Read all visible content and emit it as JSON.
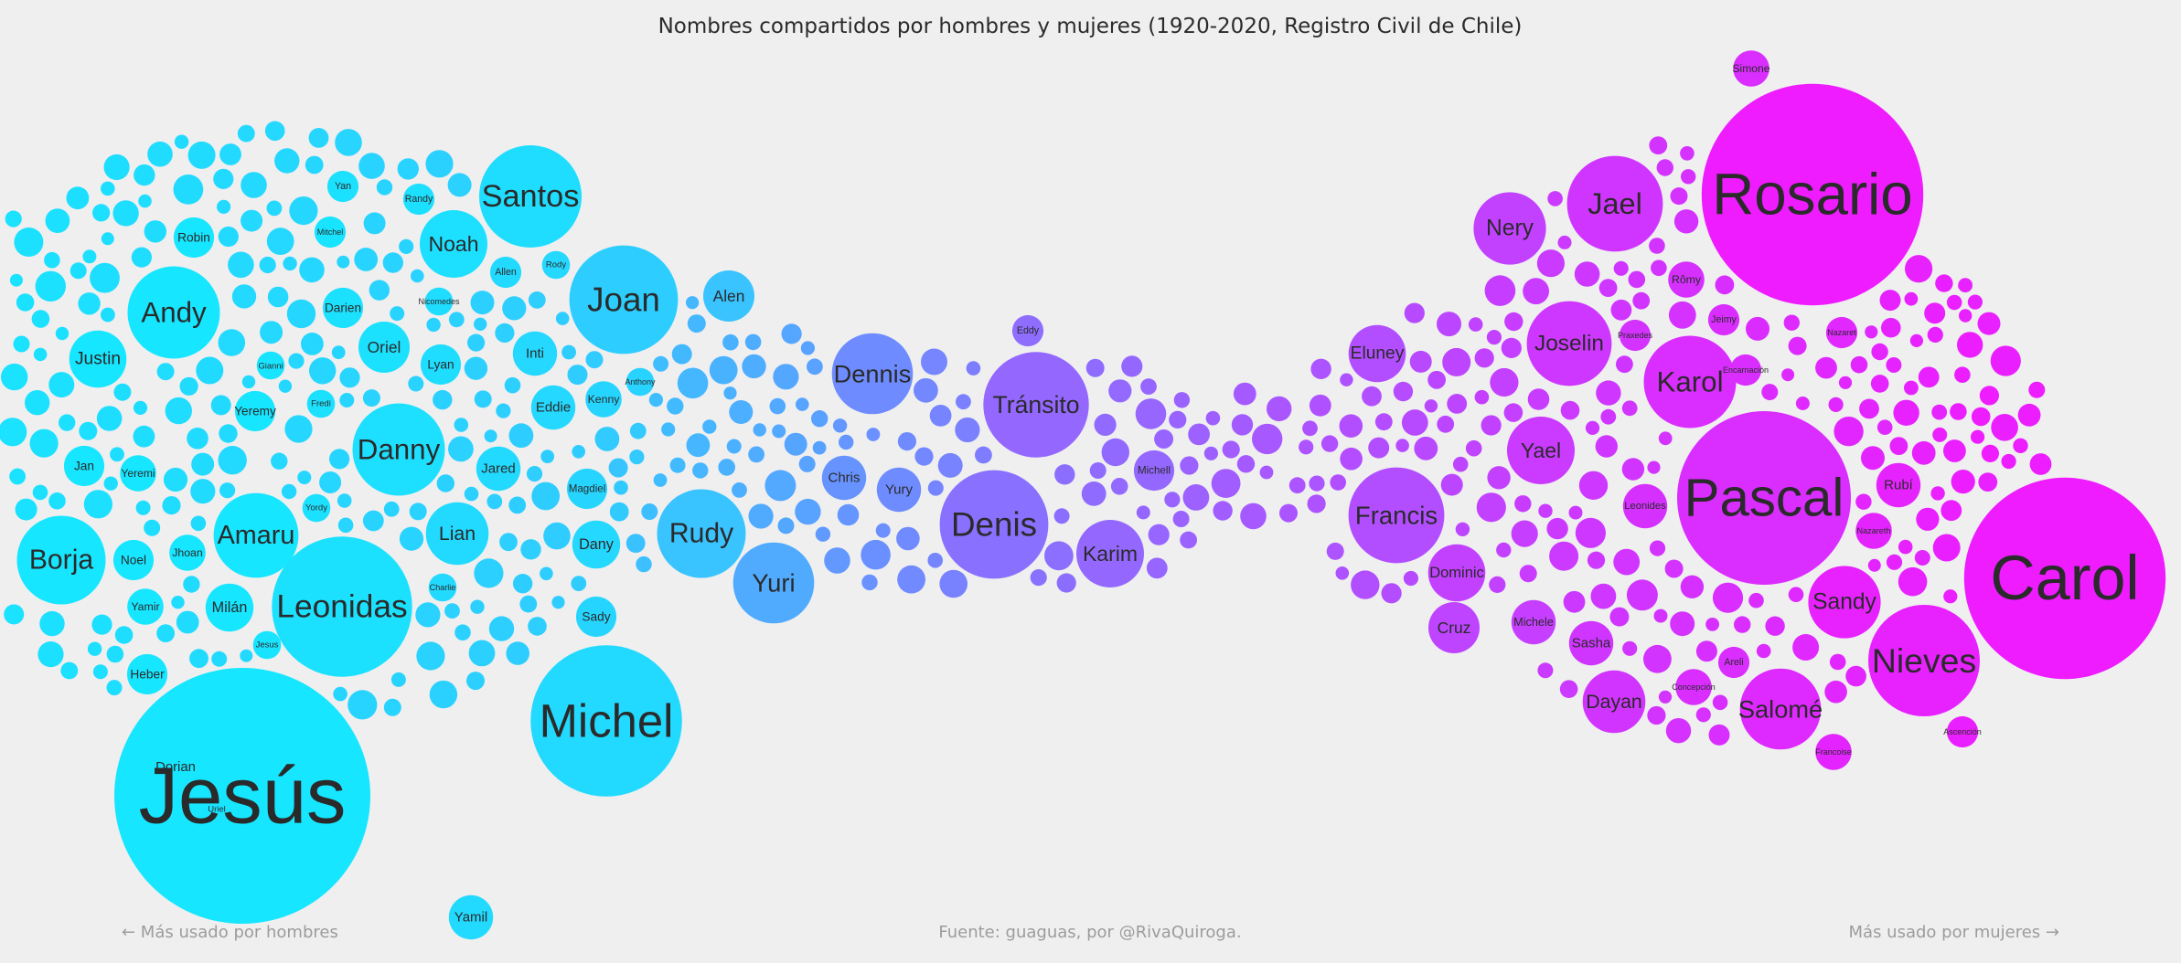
{
  "chart_data": {
    "type": "bubble",
    "title": "Nombres compartidos por hombres y mujeres (1920-2020, Registro Civil de Chile)",
    "left_note": "← Más usado por hombres",
    "center_note": "Fuente: guaguas, por @RivaQuiroga.",
    "right_note": "Más usado por mujeres →",
    "colors": {
      "male": "#16e6ff",
      "neutral": "#8a70ff",
      "female": "#ee1cff",
      "background": "#efefef"
    },
    "scale_note": "x = lean from 0 (mostly men) to 1 (mostly women); size = relative frequency (0-100)",
    "names": [
      {
        "name": "Jesús",
        "x": 0.0,
        "size": 100
      },
      {
        "name": "Rosario",
        "x": 1.0,
        "size": 75
      },
      {
        "name": "Carol",
        "x": 1.0,
        "size": 62
      },
      {
        "name": "Pascal",
        "x": 0.9,
        "size": 46
      },
      {
        "name": "Michel",
        "x": 0.05,
        "size": 35
      },
      {
        "name": "Leonidas",
        "x": 0.02,
        "size": 30
      },
      {
        "name": "Denis",
        "x": 0.5,
        "size": 18
      },
      {
        "name": "Tránsito",
        "x": 0.55,
        "size": 17
      },
      {
        "name": "Santos",
        "x": 0.04,
        "size": 16
      },
      {
        "name": "Joan",
        "x": 0.1,
        "size": 18
      },
      {
        "name": "Nieves",
        "x": 0.97,
        "size": 19
      },
      {
        "name": "Danny",
        "x": 0.03,
        "size": 13
      },
      {
        "name": "Andy",
        "x": 0.0,
        "size": 13
      },
      {
        "name": "Amaru",
        "x": 0.0,
        "size": 11
      },
      {
        "name": "Francis",
        "x": 0.7,
        "size": 14
      },
      {
        "name": "Jael",
        "x": 0.85,
        "size": 14
      },
      {
        "name": "Salomé",
        "x": 0.92,
        "size": 10
      },
      {
        "name": "Karol",
        "x": 0.9,
        "size": 13
      },
      {
        "name": "Joselin",
        "x": 0.84,
        "size": 11
      },
      {
        "name": "Rudy",
        "x": 0.15,
        "size": 12
      },
      {
        "name": "Borja",
        "x": 0.0,
        "size": 12
      },
      {
        "name": "Sandy",
        "x": 0.97,
        "size": 8
      },
      {
        "name": "Dennis",
        "x": 0.38,
        "size": 10
      },
      {
        "name": "Yuri",
        "x": 0.25,
        "size": 10
      },
      {
        "name": "Dayan",
        "x": 0.86,
        "size": 6
      },
      {
        "name": "Karim",
        "x": 0.55,
        "size": 7
      },
      {
        "name": "Nery",
        "x": 0.78,
        "size": 8
      },
      {
        "name": "Noah",
        "x": 0.03,
        "size": 7
      },
      {
        "name": "Lian",
        "x": 0.05,
        "size": 6
      },
      {
        "name": "Yael",
        "x": 0.82,
        "size": 7
      },
      {
        "name": "Eluney",
        "x": 0.7,
        "size": 5
      },
      {
        "name": "Oriel",
        "x": 0.02,
        "size": 4
      },
      {
        "name": "Alen",
        "x": 0.15,
        "size": 4
      },
      {
        "name": "Justin",
        "x": 0.0,
        "size": 5
      },
      {
        "name": "Dominic",
        "x": 0.78,
        "size": 5
      },
      {
        "name": "Yamil",
        "x": 0.05,
        "size": 3
      },
      {
        "name": "Cruz",
        "x": 0.76,
        "size": 4
      },
      {
        "name": "Dany",
        "x": 0.06,
        "size": 3.5
      },
      {
        "name": "Dorian",
        "x": 0.0,
        "size": 3
      },
      {
        "name": "Milán",
        "x": 0.0,
        "size": 3.5
      },
      {
        "name": "Chris",
        "x": 0.35,
        "size": 3
      },
      {
        "name": "Yury",
        "x": 0.38,
        "size": 3
      },
      {
        "name": "Inti",
        "x": 0.06,
        "size": 3
      },
      {
        "name": "Jared",
        "x": 0.05,
        "size": 3
      },
      {
        "name": "Eddie",
        "x": 0.06,
        "size": 3
      },
      {
        "name": "Rubí",
        "x": 0.96,
        "size": 3
      },
      {
        "name": "Sasha",
        "x": 0.85,
        "size": 3
      },
      {
        "name": "Michele",
        "x": 0.8,
        "size": 3
      },
      {
        "name": "Leonides",
        "x": 0.88,
        "size": 3
      },
      {
        "name": "Robin",
        "x": 0.0,
        "size": 2.5
      },
      {
        "name": "Heber",
        "x": 0.0,
        "size": 2.5
      },
      {
        "name": "Darien",
        "x": 0.02,
        "size": 2.5
      },
      {
        "name": "Lyan",
        "x": 0.04,
        "size": 2.5
      },
      {
        "name": "Yeremy",
        "x": 0.0,
        "size": 2.5
      },
      {
        "name": "Noel",
        "x": 0.0,
        "size": 2.5
      },
      {
        "name": "Jhoan",
        "x": 0.0,
        "size": 2
      },
      {
        "name": "Magdiel",
        "x": 0.07,
        "size": 2.5
      },
      {
        "name": "Kenny",
        "x": 0.07,
        "size": 2
      },
      {
        "name": "Sady",
        "x": 0.07,
        "size": 2.5
      },
      {
        "name": "Jan",
        "x": 0.0,
        "size": 2.5
      },
      {
        "name": "Yeremi",
        "x": 0.0,
        "size": 2
      },
      {
        "name": "Yamir",
        "x": 0.0,
        "size": 2
      },
      {
        "name": "Michell",
        "x": 0.55,
        "size": 2.5
      },
      {
        "name": "Eddy",
        "x": 0.52,
        "size": 1.5
      },
      {
        "name": "Encarnación",
        "x": 0.9,
        "size": 1.5
      },
      {
        "name": "Rômy",
        "x": 0.88,
        "size": 2
      },
      {
        "name": "Nazareth",
        "x": 0.95,
        "size": 2
      },
      {
        "name": "Simone",
        "x": 0.9,
        "size": 2
      },
      {
        "name": "Concepción",
        "x": 0.9,
        "size": 2
      },
      {
        "name": "Francoise",
        "x": 0.95,
        "size": 2
      },
      {
        "name": "Ascención",
        "x": 0.98,
        "size": 1.5
      },
      {
        "name": "Areli",
        "x": 0.9,
        "size": 1.5
      },
      {
        "name": "Praxedes",
        "x": 0.87,
        "size": 1.5
      },
      {
        "name": "Jeimy",
        "x": 0.9,
        "size": 1.5
      },
      {
        "name": "Nazaret",
        "x": 0.93,
        "size": 1.5
      },
      {
        "name": "Mitchel",
        "x": 0.01,
        "size": 1.5
      },
      {
        "name": "Yan",
        "x": 0.02,
        "size": 1.5
      },
      {
        "name": "Randy",
        "x": 0.03,
        "size": 1.5
      },
      {
        "name": "Allen",
        "x": 0.05,
        "size": 1.5
      },
      {
        "name": "Rody",
        "x": 0.06,
        "size": 1.2
      },
      {
        "name": "Nicomedes",
        "x": 0.04,
        "size": 1.2
      },
      {
        "name": "Gianni",
        "x": 0.01,
        "size": 1.2
      },
      {
        "name": "Fredi",
        "x": 0.02,
        "size": 1.2
      },
      {
        "name": "Yordy",
        "x": 0.02,
        "size": 1.2
      },
      {
        "name": "Jesus",
        "x": 0.01,
        "size": 1.2
      },
      {
        "name": "Uriel",
        "x": 0.01,
        "size": 1.2
      },
      {
        "name": "Anthony",
        "x": 0.08,
        "size": 1.2
      },
      {
        "name": "Charlie",
        "x": 0.05,
        "size": 1.2
      }
    ]
  }
}
